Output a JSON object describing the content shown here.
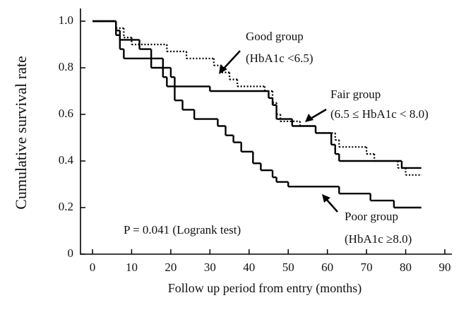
{
  "chart_data": {
    "type": "step",
    "xlabel": "Follow up period from entry (months)",
    "ylabel": "Cumulative survival rate",
    "xlim": [
      0,
      90
    ],
    "xticks": [
      0,
      10,
      20,
      30,
      40,
      50,
      60,
      70,
      80,
      90
    ],
    "ylim": [
      0,
      1
    ],
    "yticks": [
      0,
      0.2,
      0.4,
      0.6,
      0.8,
      {
        "value": 1,
        "label": "1.0"
      }
    ],
    "annotations": [
      "P = 0.041 (Logrank test)"
    ],
    "series": [
      {
        "name": "Good group",
        "note": "(HbA1c <6.5)",
        "color": "#000000",
        "dotted": true,
        "x": [
          0,
          6,
          8,
          10,
          19,
          24,
          31,
          33,
          35,
          37,
          44,
          46,
          47,
          48,
          53,
          57,
          62,
          63,
          70,
          72,
          78,
          80,
          84
        ],
        "values": [
          1,
          0.97,
          0.93,
          0.9,
          0.87,
          0.84,
          0.81,
          0.78,
          0.75,
          0.72,
          0.7,
          0.65,
          0.6,
          0.57,
          0.55,
          0.52,
          0.49,
          0.46,
          0.43,
          0.4,
          0.37,
          0.34,
          0.34
        ]
      },
      {
        "name": "Fair group",
        "note": "(6.5 ≤ HbA1c < 8.0)",
        "color": "#000000",
        "dotted": false,
        "x": [
          0,
          6,
          7,
          12,
          15,
          18,
          20,
          21,
          30,
          45,
          46,
          47,
          51,
          57,
          61,
          62,
          63,
          79,
          84
        ],
        "values": [
          1,
          0.96,
          0.92,
          0.88,
          0.84,
          0.8,
          0.76,
          0.72,
          0.7,
          0.67,
          0.64,
          0.58,
          0.55,
          0.52,
          0.47,
          0.43,
          0.4,
          0.37,
          0.37
        ]
      },
      {
        "name": "Poor group",
        "note": "(HbA1c ≥8.0)",
        "color": "#000000",
        "dotted": false,
        "x": [
          0,
          6,
          7,
          8,
          15,
          18,
          19,
          21,
          23,
          26,
          32,
          34,
          36,
          38,
          41,
          43,
          46,
          47,
          50,
          63,
          71,
          77,
          84
        ],
        "values": [
          1,
          0.94,
          0.88,
          0.84,
          0.8,
          0.76,
          0.72,
          0.66,
          0.62,
          0.58,
          0.55,
          0.51,
          0.48,
          0.44,
          0.39,
          0.36,
          0.33,
          0.31,
          0.29,
          0.26,
          0.23,
          0.2,
          0.2
        ]
      }
    ]
  }
}
